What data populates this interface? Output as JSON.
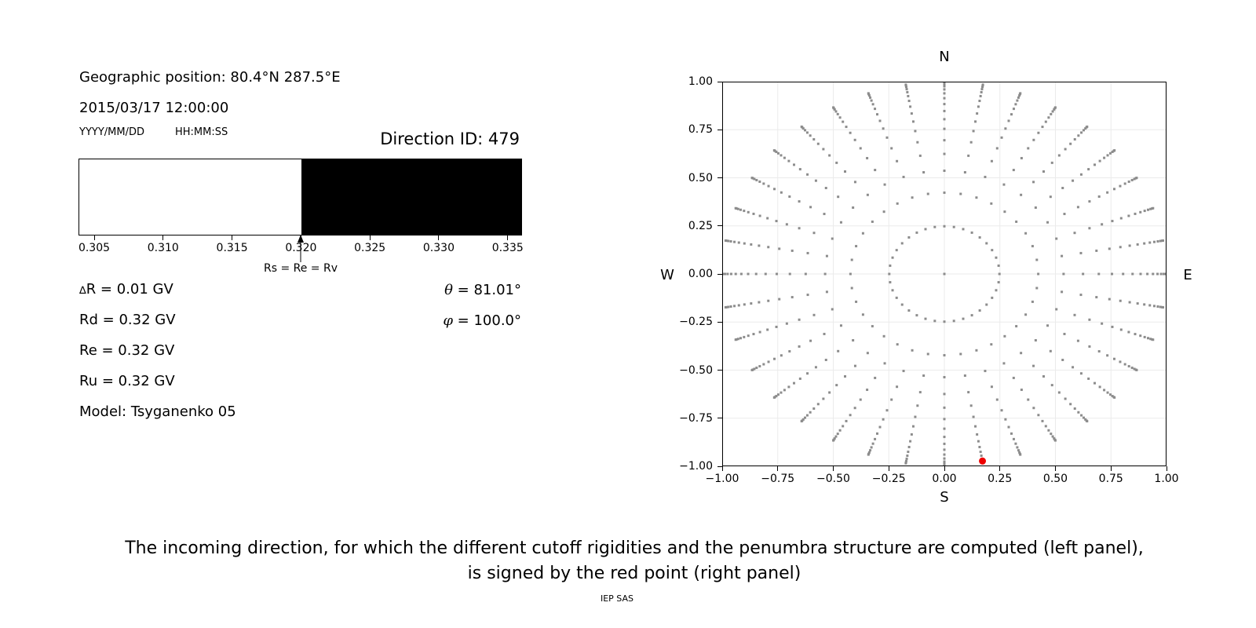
{
  "left_panel": {
    "geographic_position": "Geographic position: 80.4°N 287.5°E",
    "datetime": "2015/03/17 12:00:00",
    "date_format_label": "YYYY/MM/DD",
    "time_format_label": "HH:MM:SS",
    "direction_id_label": "Direction ID: 479",
    "values": {
      "delta_sym": "∆",
      "delta_rest": "R = 0.01 GV",
      "rd": "Rd = 0.32 GV",
      "re": "Re = 0.32 GV",
      "ru": "Ru = 0.32 GV",
      "model": "Model: Tsyganenko 05",
      "theta_sym": "θ",
      "theta_rest": " = 81.01°",
      "phi_sym": "φ",
      "phi_rest": " = 100.0°"
    }
  },
  "right_panel": {
    "compass": {
      "north": "N",
      "south": "S",
      "east": "E",
      "west": "W"
    }
  },
  "caption": {
    "line1": "The incoming direction, for which the different cutoff rigidities and the penumbra structure are computed (left panel),",
    "line2": "is signed by the red point (right panel)",
    "credit": "IEP SAS"
  },
  "chart_data": [
    {
      "type": "bar",
      "panel": "penumbra-structure",
      "xlim": [
        0.30386,
        0.33604
      ],
      "xticks": [
        0.305,
        0.31,
        0.315,
        0.32,
        0.325,
        0.33,
        0.335
      ],
      "xtick_labels": [
        "0.305",
        "0.310",
        "0.315",
        "0.320",
        "0.325",
        "0.330",
        "0.335"
      ],
      "regions": [
        {
          "x0": 0.30386,
          "x1": 0.32,
          "color": "#ffffff",
          "meaning": "allowed rigidities"
        },
        {
          "x0": 0.32,
          "x1": 0.33604,
          "color": "#000000",
          "meaning": "forbidden rigidities"
        }
      ],
      "annotation": {
        "text": "Rs = Re = Rv",
        "x": 0.32
      }
    },
    {
      "type": "scatter",
      "panel": "incoming-directions",
      "xlim": [
        -1,
        1
      ],
      "ylim": [
        -1,
        1
      ],
      "grid": true,
      "xticks": [
        -1,
        -0.75,
        -0.5,
        -0.25,
        0,
        0.25,
        0.5,
        0.75,
        1
      ],
      "xtick_labels": [
        "−1.00",
        "−0.75",
        "−0.50",
        "−0.25",
        "0.00",
        "0.25",
        "0.50",
        "0.75",
        "1.00"
      ],
      "yticks": [
        1,
        0.75,
        0.5,
        0.25,
        0,
        -0.25,
        -0.5,
        -0.75,
        -1
      ],
      "ytick_labels": [
        "1.00",
        "0.75",
        "0.50",
        "0.25",
        "0.00",
        "−0.25",
        "−0.50",
        "−0.75",
        "−1.00"
      ],
      "azimuth_step_deg": 10,
      "zenith_ring_radii": [
        0.248,
        0.4227,
        0.5367,
        0.6242,
        0.6953,
        0.7545,
        0.8046,
        0.8472,
        0.8833,
        0.9138,
        0.9391,
        0.9596,
        0.9758,
        0.9877,
        0.9956,
        0.9995
      ],
      "center_point": {
        "x": 0,
        "y": 0
      },
      "red_point": {
        "x": 0.1715,
        "y": -0.9727,
        "theta_deg": 81.01,
        "phi_deg": 100.0
      },
      "colors": {
        "dots": "#8c8c8c",
        "red_point": "#ee0000",
        "grid": "#ebebeb",
        "axis": "#000000"
      }
    }
  ]
}
